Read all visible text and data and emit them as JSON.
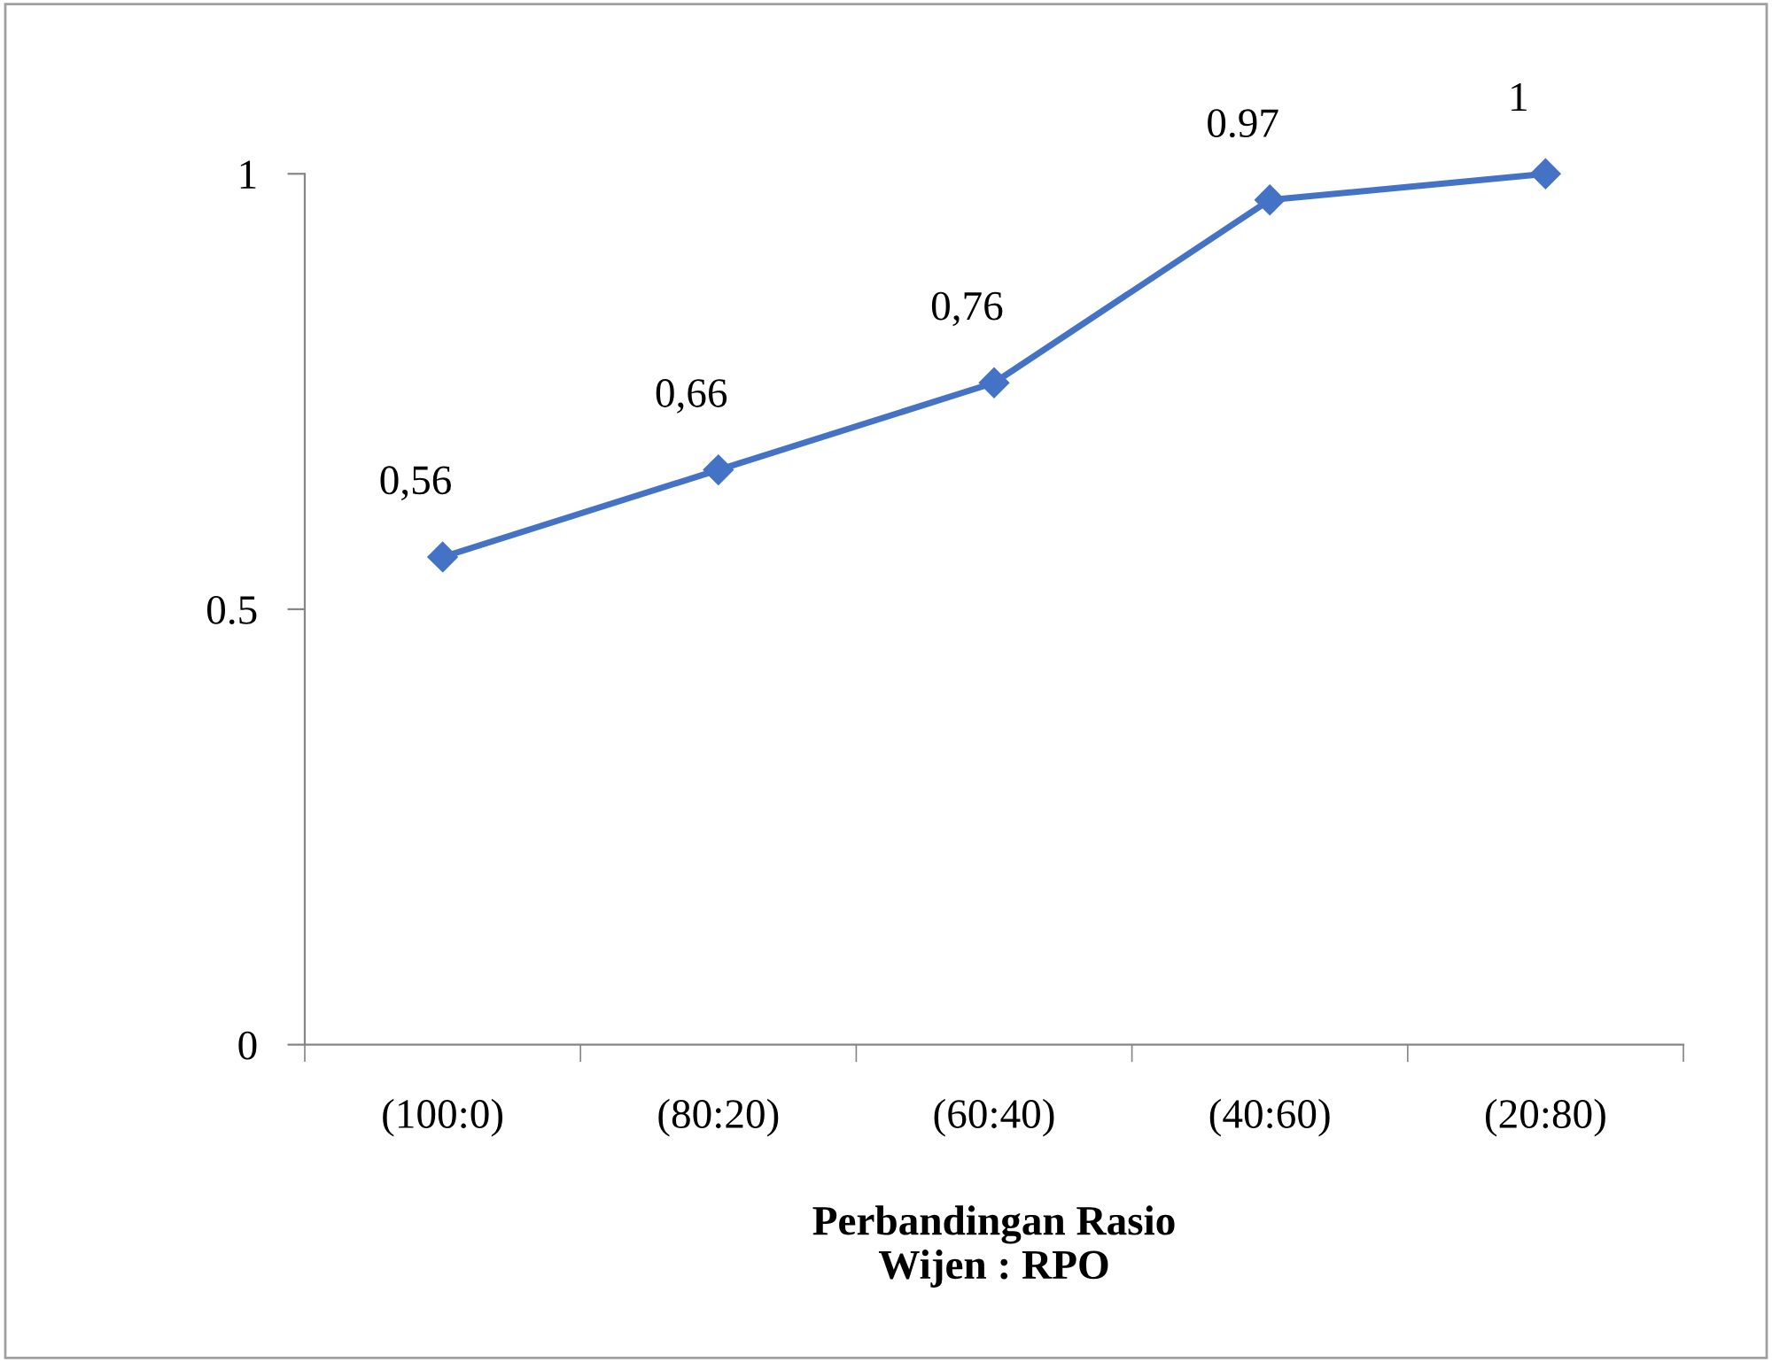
{
  "chart_data": {
    "type": "line",
    "xlabel": "Perbandingan Rasio\nWijen : RPO",
    "categories": [
      "(100:0)",
      "(80:20)",
      "(60:40)",
      "(40:60)",
      "(20:80)"
    ],
    "series": [
      {
        "color": "#4472c4",
        "values": [
          0.56,
          0.66,
          0.76,
          0.97,
          1
        ],
        "value_labels": [
          "0,56",
          "0,66",
          "0,76",
          "0.97",
          "1"
        ]
      }
    ],
    "ylim": [
      0,
      1
    ],
    "yticks": [
      0,
      0.5,
      1
    ],
    "grid": false,
    "legend": false,
    "marker": "diamond",
    "line_style": "solid"
  }
}
